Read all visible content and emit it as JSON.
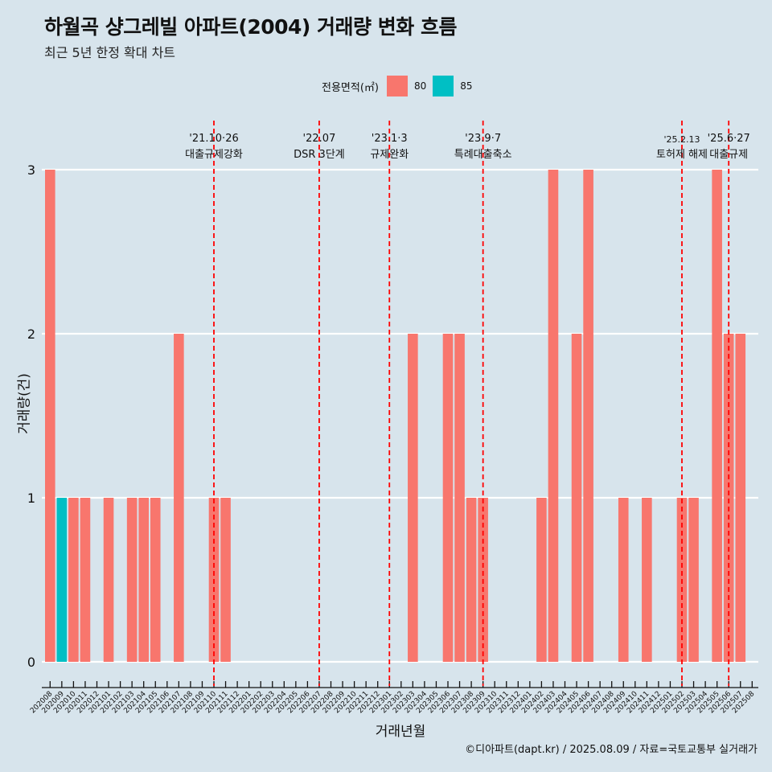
{
  "title": "하월곡 샹그레빌 아파트(2004) 거래량 변화 흐름",
  "subtitle": "최근 5년 한정 확대 차트",
  "legend": {
    "title": "전용면적(㎡)",
    "items": [
      {
        "label": "80",
        "color": "#f8766d"
      },
      {
        "label": "85",
        "color": "#00bfc4"
      }
    ]
  },
  "caption": "©디아파트(dapt.kr) / 2025.08.09 / 자료=국토교통부 실거래가",
  "chart_data": {
    "type": "bar",
    "stacked": true,
    "xlabel": "거래년월",
    "ylabel": "거래량(건)",
    "ylim": [
      0,
      3
    ],
    "yticks": [
      0,
      1,
      2,
      3
    ],
    "categories": [
      "202008",
      "202009",
      "202010",
      "202011",
      "202012",
      "202101",
      "202102",
      "202103",
      "202104",
      "202105",
      "202106",
      "202107",
      "202108",
      "202109",
      "202110",
      "202111",
      "202112",
      "202201",
      "202202",
      "202203",
      "202204",
      "202205",
      "202206",
      "202207",
      "202208",
      "202209",
      "202210",
      "202211",
      "202212",
      "202301",
      "202302",
      "202303",
      "202304",
      "202305",
      "202306",
      "202307",
      "202308",
      "202309",
      "202310",
      "202311",
      "202312",
      "202401",
      "202402",
      "202403",
      "202404",
      "202405",
      "202406",
      "202407",
      "202408",
      "202409",
      "202410",
      "202411",
      "202412",
      "202501",
      "202502",
      "202503",
      "202504",
      "202505",
      "202506",
      "202507",
      "202508"
    ],
    "series": [
      {
        "name": "80",
        "color": "#f8766d",
        "values": [
          3,
          0,
          1,
          1,
          0,
          1,
          0,
          1,
          1,
          1,
          0,
          2,
          0,
          0,
          1,
          1,
          0,
          0,
          0,
          0,
          0,
          0,
          0,
          0,
          0,
          0,
          0,
          0,
          0,
          0,
          0,
          2,
          0,
          0,
          2,
          2,
          1,
          1,
          0,
          0,
          0,
          0,
          1,
          3,
          0,
          2,
          3,
          0,
          0,
          1,
          0,
          1,
          0,
          0,
          1,
          1,
          0,
          3,
          2,
          2,
          0
        ]
      },
      {
        "name": "85",
        "color": "#00bfc4",
        "values": [
          0,
          1,
          0,
          0,
          0,
          0,
          0,
          0,
          0,
          0,
          0,
          0,
          0,
          0,
          0,
          0,
          0,
          0,
          0,
          0,
          0,
          0,
          0,
          0,
          0,
          0,
          0,
          0,
          0,
          0,
          0,
          0,
          0,
          0,
          0,
          0,
          0,
          0,
          0,
          0,
          0,
          0,
          0,
          0,
          0,
          0,
          0,
          0,
          0,
          0,
          0,
          0,
          0,
          0,
          0,
          0,
          0,
          0,
          0,
          0,
          0
        ]
      }
    ],
    "grid": "horizontal",
    "annotations": [
      {
        "x": "202110",
        "date": "'21.10·26",
        "label": "대출규제강화",
        "color": "#ff0000"
      },
      {
        "x": "202207",
        "date": "'22.07",
        "label": "DSR 3단계",
        "color": "#ff0000"
      },
      {
        "x": "202301",
        "date": "'23.1·3",
        "label": "규제완화",
        "color": "#ff0000"
      },
      {
        "x": "202309",
        "date": "'23.9·7",
        "label": "특례대출축소",
        "color": "#ff0000"
      },
      {
        "x": "202502",
        "date": "'25.2.13",
        "label": "토허제 해제",
        "color": "#ff0000"
      },
      {
        "x": "202506",
        "date": "'25.6·27",
        "label": "대출규제",
        "color": "#ff0000"
      }
    ]
  }
}
